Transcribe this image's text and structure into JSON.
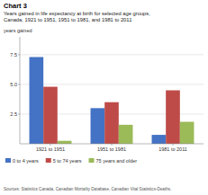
{
  "chart_data": {
    "type": "bar",
    "title": "Chart 3",
    "subtitle": [
      "Years gained in life expectancy at birth for selected age groups,",
      "Canada, 1921 to 1951, 1951 to 1981, and 1981 to 2011"
    ],
    "ylabel": "years gained",
    "annotations": [
      "Sources: Statistics Canada, Canadian Mortality Database, Canadian Vital Statistics-Deaths."
    ],
    "categories": [
      "1921 to 1951",
      "1951 to 1981",
      "1981 to 2011"
    ],
    "series": [
      {
        "name": "0 to 4 years",
        "color": "#4472c4",
        "values": [
          7.3,
          3.0,
          0.75
        ]
      },
      {
        "name": "5 to 74 years",
        "color": "#be4b48",
        "values": [
          4.8,
          3.5,
          4.5
        ]
      },
      {
        "name": "75 years and older",
        "color": "#9bbb59",
        "values": [
          0.25,
          1.6,
          1.85
        ]
      }
    ],
    "ylim": [
      0,
      9.0
    ],
    "yticks": [
      2.5,
      {
        "value": 5.0,
        "label": "5.0"
      },
      7.5
    ],
    "grid": true,
    "legend": "bottom"
  }
}
